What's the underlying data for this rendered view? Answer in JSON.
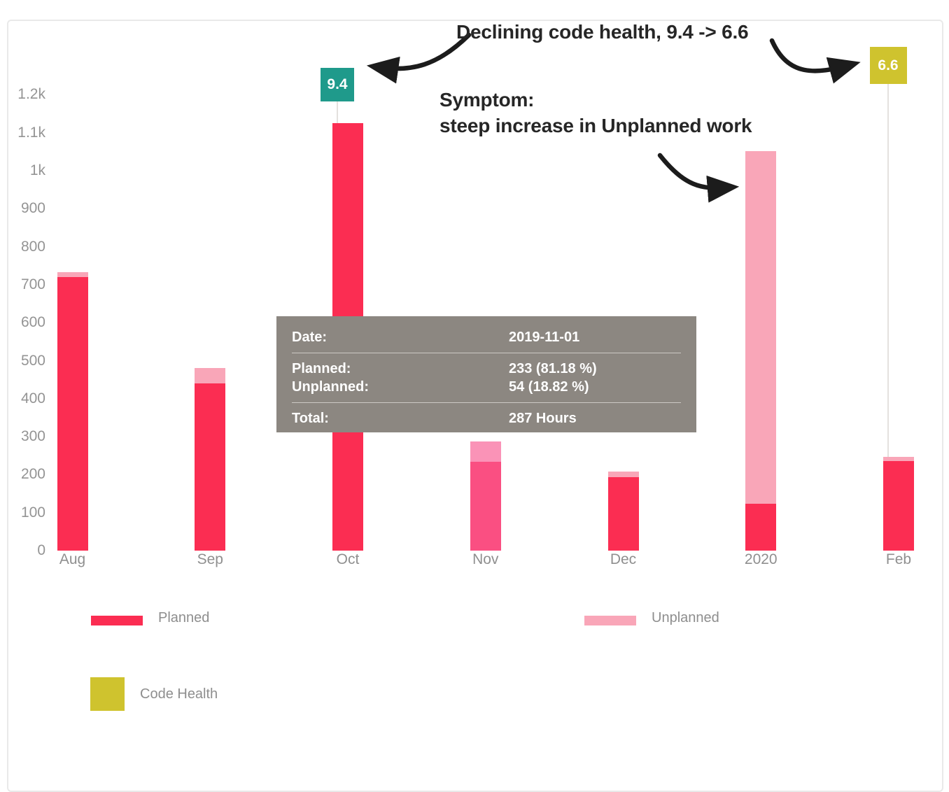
{
  "chart_data": {
    "type": "bar",
    "stacked": true,
    "title": "",
    "xlabel": "",
    "ylabel": "",
    "grid": false,
    "categories": [
      "Aug",
      "Sep",
      "Oct",
      "Nov",
      "Dec",
      "2020",
      "Feb"
    ],
    "series": [
      {
        "name": "Planned",
        "color": "#fb2d52",
        "values": [
          720,
          440,
          1125,
          233,
          193,
          123,
          236
        ]
      },
      {
        "name": "Unplanned",
        "color": "#f9a6b8",
        "values": [
          13,
          41,
          0,
          54,
          15,
          928,
          11
        ]
      }
    ],
    "highlight": {
      "category": "Nov",
      "planned_color": "#fa4f82",
      "unplanned_color": "#fa93b7"
    },
    "y_tick_labels": [
      "0",
      "100",
      "200",
      "300",
      "400",
      "500",
      "600",
      "700",
      "800",
      "900",
      "1k",
      "1.1k",
      "1.2k"
    ],
    "y_tick_values": [
      0,
      100,
      200,
      300,
      400,
      500,
      600,
      700,
      800,
      900,
      1000,
      1100,
      1200
    ],
    "ylim": [
      0,
      1250
    ],
    "legend_position": "bottom",
    "code_health": [
      {
        "category": "Oct",
        "value": "9.4",
        "color": "#1f9a8b"
      },
      {
        "category": "Feb",
        "value": "6.6",
        "color": "#cfc32e"
      }
    ]
  },
  "annotations": {
    "declining": "Declining code health, 9.4 -> 6.6",
    "symptom_line1": "Symptom:",
    "symptom_line2": "steep increase in Unplanned work"
  },
  "tooltip": {
    "date_label": "Date:",
    "date_value": "2019-11-01",
    "planned_label": "Planned:",
    "planned_value": "233 (81.18 %)",
    "unplanned_label": "Unplanned:",
    "unplanned_value": "54 (18.82 %)",
    "total_label": "Total:",
    "total_value": "287 Hours"
  },
  "legend": {
    "planned": "Planned",
    "unplanned": "Unplanned",
    "code_health": "Code Health"
  },
  "colors": {
    "planned": "#fb2d52",
    "unplanned": "#f9a6b8",
    "code_health": "#cfc32e",
    "code_health_good": "#1f9a8b",
    "tooltip_bg": "#8c8781",
    "axis_text": "#949494",
    "annotation_text": "#262626"
  }
}
